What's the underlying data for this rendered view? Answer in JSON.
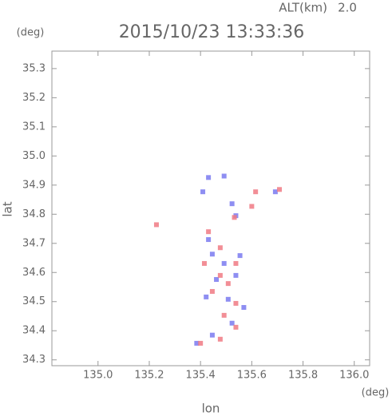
{
  "chart_data": {
    "type": "scatter",
    "title": "2015/10/23 13:33:36",
    "altitude_label": "ALT(km)",
    "altitude": "2.0",
    "y_unit": "(deg)",
    "x_unit": "(deg)",
    "ylabel": "lat",
    "xlabel": "lon",
    "xlim": [
      134.82,
      136.06
    ],
    "ylim": [
      34.28,
      35.36
    ],
    "xticks": [
      {
        "value": 135.0,
        "label": "135.0"
      },
      135.2,
      135.4,
      135.6,
      135.8,
      {
        "value": 136.0,
        "label": "136.0"
      }
    ],
    "yticks": [
      34.3,
      34.4,
      34.5,
      34.6,
      34.7,
      34.8,
      34.9,
      {
        "value": 35.0,
        "label": "35.0"
      },
      35.1,
      35.2,
      35.3
    ],
    "series": [
      {
        "color": "#7a7af0",
        "x": [
          135.431,
          135.492,
          135.409,
          135.523,
          135.692,
          135.538,
          135.446,
          135.492,
          135.462,
          135.538,
          135.508,
          135.554,
          135.431,
          135.569,
          135.523,
          135.385,
          135.446,
          135.422
        ],
        "y": [
          34.926,
          34.931,
          34.877,
          34.836,
          34.877,
          34.795,
          34.663,
          34.631,
          34.576,
          34.59,
          34.508,
          34.658,
          34.713,
          34.48,
          34.426,
          34.357,
          34.385,
          34.516
        ]
      },
      {
        "color": "#f07a84",
        "x": [
          135.228,
          135.431,
          135.477,
          135.415,
          135.538,
          135.508,
          135.446,
          135.538,
          135.492,
          135.538,
          135.477,
          135.4,
          135.6,
          135.532,
          135.615,
          135.708,
          135.477
        ],
        "y": [
          34.764,
          34.74,
          34.685,
          34.631,
          34.631,
          34.562,
          34.535,
          34.494,
          34.453,
          34.412,
          34.371,
          34.357,
          34.827,
          34.789,
          34.877,
          34.885,
          34.59
        ]
      }
    ]
  }
}
